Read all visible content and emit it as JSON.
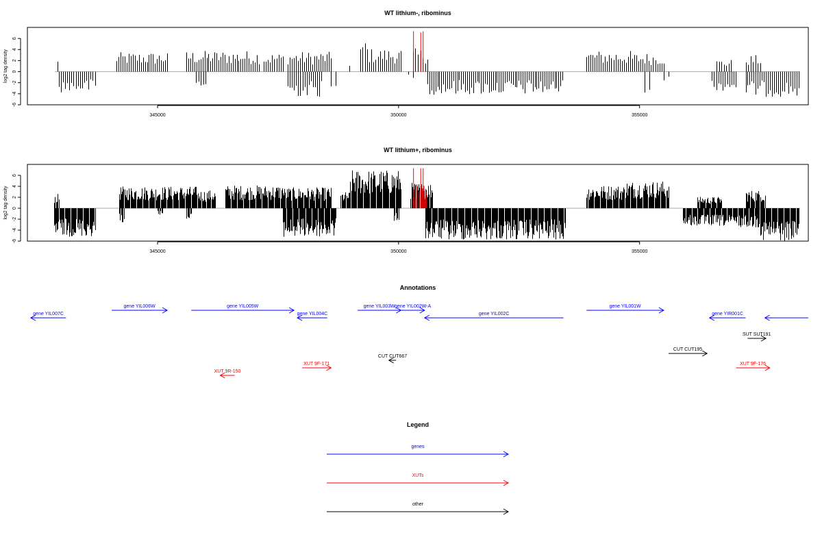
{
  "chart_data": [
    {
      "type": "bar",
      "title": "WT lithium-, ribominus",
      "xlabel": "",
      "ylabel": "log2 tag density",
      "xlim": [
        342300,
        358500
      ],
      "ylim": [
        -6,
        8
      ],
      "x_ticks": [
        345000,
        350000,
        355000
      ],
      "x_tick_labels": [
        "345000",
        "350000",
        "355000"
      ],
      "y_ticks": [
        -6,
        -4,
        -2,
        0,
        2,
        4,
        6
      ],
      "y_tick_labels": [
        "-6",
        "-4",
        "-2",
        "0",
        "2",
        "4",
        "6"
      ],
      "baseline": 0,
      "series": [
        {
          "strand": "plus",
          "color": "#000000",
          "segments": [
            {
              "start": 342900,
              "end": 342950,
              "max": 2.3
            },
            {
              "start": 344150,
              "end": 345200,
              "max": 3.5
            },
            {
              "start": 345600,
              "end": 347100,
              "max": 3.8
            },
            {
              "start": 347200,
              "end": 347600,
              "max": 3.4
            },
            {
              "start": 347700,
              "end": 348600,
              "max": 3.6
            },
            {
              "start": 348950,
              "end": 349000,
              "max": 2.2
            },
            {
              "start": 349200,
              "end": 349350,
              "max": 5.6
            },
            {
              "start": 349350,
              "end": 350050,
              "max": 4.2
            },
            {
              "start": 350300,
              "end": 350600,
              "max": 4.2
            },
            {
              "start": 353900,
              "end": 354800,
              "max": 3.8
            },
            {
              "start": 354800,
              "end": 355500,
              "max": 3.4
            },
            {
              "start": 356600,
              "end": 356900,
              "max": 2.2
            },
            {
              "start": 357200,
              "end": 357500,
              "max": 3.0
            }
          ]
        },
        {
          "strand": "minus",
          "color": "#000000",
          "segments": [
            {
              "start": 342950,
              "end": 343700,
              "max": 3.8
            },
            {
              "start": 345800,
              "end": 346000,
              "max": 3.1
            },
            {
              "start": 347700,
              "end": 348400,
              "max": 4.6
            },
            {
              "start": 348600,
              "end": 348700,
              "max": 4.3
            },
            {
              "start": 350200,
              "end": 350300,
              "max": 1.2
            },
            {
              "start": 350600,
              "end": 353400,
              "max": 4.2
            },
            {
              "start": 355100,
              "end": 355200,
              "max": 3.8
            },
            {
              "start": 355500,
              "end": 355600,
              "max": 1.8
            },
            {
              "start": 356500,
              "end": 357000,
              "max": 3.5
            },
            {
              "start": 357200,
              "end": 358300,
              "max": 4.6
            }
          ]
        },
        {
          "strand": "highlight",
          "color": "#ff0000",
          "positions": [
            350310,
            350460,
            350510
          ],
          "heights": [
            7.3,
            7.1,
            7.3
          ]
        }
      ]
    },
    {
      "type": "bar",
      "title": "WT lithium+, ribominus",
      "xlabel": "",
      "ylabel": "log2 tag density",
      "xlim": [
        342300,
        358500
      ],
      "ylim": [
        -6,
        8
      ],
      "x_ticks": [
        345000,
        350000,
        355000
      ],
      "x_tick_labels": [
        "345000",
        "350000",
        "355000"
      ],
      "y_ticks": [
        -6,
        -4,
        -2,
        0,
        2,
        4,
        6
      ],
      "y_tick_labels": [
        "-6",
        "-4",
        "-2",
        "0",
        "2",
        "4",
        "6"
      ],
      "baseline": 0,
      "series": [
        {
          "strand": "plus",
          "color": "#000000",
          "segments": [
            {
              "start": 342850,
              "end": 342950,
              "max": 2.6
            },
            {
              "start": 344200,
              "end": 345800,
              "max": 4.0
            },
            {
              "start": 345800,
              "end": 346200,
              "max": 3.3
            },
            {
              "start": 346400,
              "end": 347600,
              "max": 4.2
            },
            {
              "start": 347600,
              "end": 348600,
              "max": 3.8
            },
            {
              "start": 348800,
              "end": 349000,
              "max": 3.0
            },
            {
              "start": 349000,
              "end": 350050,
              "max": 7.0
            },
            {
              "start": 350250,
              "end": 350700,
              "max": 4.7
            },
            {
              "start": 353900,
              "end": 354700,
              "max": 4.2
            },
            {
              "start": 354700,
              "end": 355600,
              "max": 5.0
            },
            {
              "start": 356200,
              "end": 356700,
              "max": 2.1
            },
            {
              "start": 357200,
              "end": 357600,
              "max": 3.3
            }
          ]
        },
        {
          "strand": "minus",
          "color": "#000000",
          "segments": [
            {
              "start": 342850,
              "end": 343700,
              "max": 5.2
            },
            {
              "start": 344200,
              "end": 344300,
              "max": 2.6
            },
            {
              "start": 345000,
              "end": 345100,
              "max": 1.2
            },
            {
              "start": 345600,
              "end": 345700,
              "max": 2.6
            },
            {
              "start": 347600,
              "end": 348700,
              "max": 5.3
            },
            {
              "start": 349900,
              "end": 350000,
              "max": 2.4
            },
            {
              "start": 350550,
              "end": 353450,
              "max": 5.8
            },
            {
              "start": 355900,
              "end": 356800,
              "max": 3.3
            },
            {
              "start": 356800,
              "end": 357500,
              "max": 3.5
            },
            {
              "start": 357500,
              "end": 358300,
              "max": 6.0
            }
          ]
        },
        {
          "strand": "highlight",
          "color": "#ff0000",
          "positions": [
            350310,
            350460,
            350510
          ],
          "heights": [
            7.3,
            7.3,
            7.3
          ]
        }
      ]
    }
  ],
  "annotations": {
    "title": "Annotations",
    "items": [
      {
        "label": "gene YIL007C",
        "color": "#0000ff",
        "start": 342370,
        "end": 343100,
        "dir": "left",
        "row": 2
      },
      {
        "label": "gene YIL006W",
        "color": "#0000ff",
        "start": 344050,
        "end": 345200,
        "dir": "right",
        "row": 1
      },
      {
        "label": "gene YIL005W",
        "color": "#0000ff",
        "start": 345700,
        "end": 347830,
        "dir": "right",
        "row": 1
      },
      {
        "label": "gene YIL004C",
        "color": "#0000ff",
        "start": 347900,
        "end": 348520,
        "dir": "left",
        "row": 2
      },
      {
        "label": "gene YIL003W",
        "color": "#0000ff",
        "start": 349150,
        "end": 350050,
        "dir": "right",
        "row": 1
      },
      {
        "label": "gene YIL002W-A",
        "color": "#0000ff",
        "start": 350050,
        "end": 350540,
        "dir": "right",
        "row": 1
      },
      {
        "label": "gene YIL002C",
        "color": "#0000ff",
        "start": 350540,
        "end": 353420,
        "dir": "left",
        "row": 2
      },
      {
        "label": "gene YIL001W",
        "color": "#0000ff",
        "start": 353900,
        "end": 355500,
        "dir": "right",
        "row": 1
      },
      {
        "label": "gene YIR001C",
        "color": "#0000ff",
        "start": 356450,
        "end": 357200,
        "dir": "left",
        "row": 2
      },
      {
        "label": "",
        "color": "#0000ff",
        "start": 357600,
        "end": 358500,
        "dir": "left",
        "row": 2
      },
      {
        "label": "SUT SUT191",
        "color": "#000000",
        "start": 357240,
        "end": 357620,
        "dir": "right",
        "row": 3
      },
      {
        "label": "CUT CUT195",
        "color": "#000000",
        "start": 355600,
        "end": 356400,
        "dir": "right",
        "row": 4
      },
      {
        "label": "CUT CUT667",
        "color": "#000000",
        "start": 349800,
        "end": 349950,
        "dir": "left",
        "row": 5
      },
      {
        "label": "XUT 9F-171",
        "color": "#ff0000",
        "start": 348000,
        "end": 348600,
        "dir": "right",
        "row": 6
      },
      {
        "label": "XUT 9F-176",
        "color": "#ff0000",
        "start": 357000,
        "end": 357700,
        "dir": "right",
        "row": 6
      },
      {
        "label": "XUT 9R-150",
        "color": "#ff0000",
        "start": 346300,
        "end": 346600,
        "dir": "left",
        "row": 7
      }
    ]
  },
  "legend": {
    "title": "Legend",
    "items": [
      {
        "label": "genes",
        "color": "#0000ff"
      },
      {
        "label": "XUTs",
        "color": "#ff0000"
      },
      {
        "label": "other",
        "color": "#000000"
      }
    ]
  }
}
